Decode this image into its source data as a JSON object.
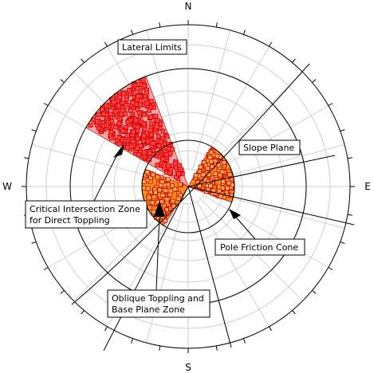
{
  "compass": {
    "north": "N",
    "south": "S",
    "east": "E",
    "west": "W"
  },
  "labels": {
    "lateral_limits": "Lateral Limits",
    "slope_plane": "Slope Plane",
    "critical_zone_line1": "Critical Intersection Zone",
    "critical_zone_line2": "for Direct Toppling",
    "pole_friction_cone": "Pole Friction Cone",
    "oblique_line1": "Oblique Toppling and",
    "oblique_line2": "Base Plane Zone"
  },
  "colors": {
    "critical_fill": "#f7a7aa",
    "critical_points": "#ff1a1a",
    "oblique_fill": "#ff8a1a",
    "grid": "#cfcfcf",
    "lines": "#000000"
  }
}
